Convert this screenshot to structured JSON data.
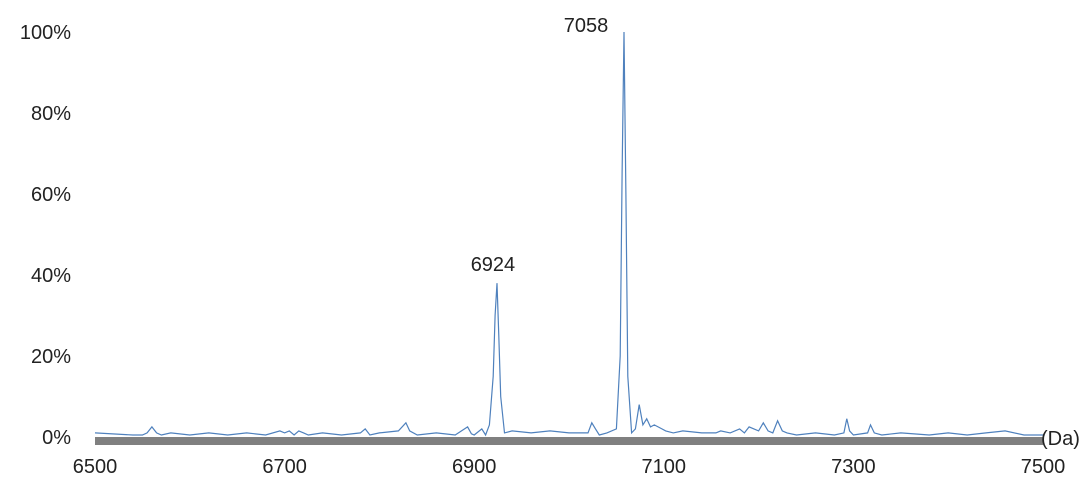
{
  "chart_data": {
    "type": "line",
    "title": "",
    "xlabel": "",
    "ylabel": "",
    "x_unit": "(Da)",
    "xlim": [
      6500,
      7500
    ],
    "ylim": [
      0,
      100
    ],
    "x_ticks": [
      "6500",
      "6700",
      "6900",
      "7100",
      "7300",
      "7500"
    ],
    "y_ticks": [
      "0%",
      "20%",
      "40%",
      "60%",
      "80%",
      "100%"
    ],
    "grid": false,
    "line_color": "#4f81bd",
    "axis_color": "#808080",
    "annotations": [
      {
        "text": "6924",
        "x": 6924,
        "y": 38
      },
      {
        "text": "7058",
        "x": 7058,
        "y": 100
      }
    ],
    "series": [
      {
        "x": [
          6500,
          6540,
          6550,
          6555,
          6560,
          6565,
          6570,
          6580,
          6600,
          6620,
          6640,
          6660,
          6680,
          6695,
          6700,
          6705,
          6710,
          6715,
          6720,
          6725,
          6740,
          6760,
          6780,
          6785,
          6790,
          6800,
          6820,
          6828,
          6832,
          6840,
          6860,
          6880,
          6893,
          6897,
          6900,
          6908,
          6912,
          6916,
          6920,
          6922,
          6924,
          6926,
          6928,
          6932,
          6940,
          6960,
          6980,
          7000,
          7020,
          7024,
          7028,
          7032,
          7040,
          7050,
          7054,
          7056,
          7058,
          7060,
          7062,
          7066,
          7070,
          7074,
          7078,
          7082,
          7086,
          7090,
          7094,
          7098,
          7102,
          7110,
          7120,
          7140,
          7155,
          7160,
          7170,
          7180,
          7185,
          7190,
          7200,
          7205,
          7210,
          7215,
          7220,
          7225,
          7230,
          7240,
          7260,
          7280,
          7290,
          7293,
          7296,
          7300,
          7315,
          7318,
          7322,
          7330,
          7350,
          7380,
          7400,
          7420,
          7440,
          7460,
          7480,
          7500
        ],
        "y": [
          1,
          0.5,
          0.5,
          1,
          2.5,
          1,
          0.5,
          1,
          0.5,
          1,
          0.5,
          1,
          0.5,
          1.5,
          1,
          1.5,
          0.5,
          1.5,
          1,
          0.5,
          1,
          0.5,
          1,
          2,
          0.5,
          1,
          1.5,
          3.5,
          1.5,
          0.5,
          1,
          0.5,
          2.5,
          0.8,
          0.5,
          2,
          0.5,
          3,
          15,
          30,
          38,
          25,
          10,
          1,
          1.5,
          1,
          1.5,
          1,
          1,
          3.5,
          2,
          0.5,
          1,
          2,
          20,
          65,
          100,
          60,
          15,
          1,
          2,
          8,
          3,
          4.5,
          2.5,
          3,
          2.5,
          2,
          1.5,
          1,
          1.5,
          1,
          1,
          1.5,
          1,
          2,
          1,
          2.5,
          1.5,
          3.5,
          1.5,
          1,
          4,
          1.5,
          1,
          0.5,
          1,
          0.5,
          1,
          4.5,
          1.5,
          0.5,
          1,
          3,
          1,
          0.5,
          1,
          0.5,
          1,
          0.5,
          1,
          1.5,
          0.5,
          0.5
        ]
      }
    ]
  }
}
